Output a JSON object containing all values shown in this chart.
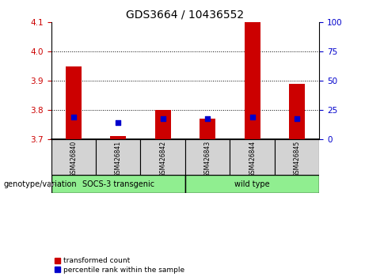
{
  "title": "GDS3664 / 10436552",
  "samples": [
    "GSM426840",
    "GSM426841",
    "GSM426842",
    "GSM426843",
    "GSM426844",
    "GSM426845"
  ],
  "red_bar_bottom": 3.7,
  "red_bar_top": [
    3.95,
    3.71,
    3.8,
    3.77,
    4.1,
    3.89
  ],
  "blue_vals": [
    3.775,
    3.755,
    3.77,
    3.77,
    3.775,
    3.77
  ],
  "ylim_left": [
    3.7,
    4.1
  ],
  "ylim_right": [
    0,
    100
  ],
  "yticks_left": [
    3.7,
    3.8,
    3.9,
    4.0,
    4.1
  ],
  "yticks_right": [
    0,
    25,
    50,
    75,
    100
  ],
  "hlines": [
    3.8,
    3.9,
    4.0
  ],
  "group1_label": "SOCS-3 transgenic",
  "group2_label": "wild type",
  "group_color": "#90EE90",
  "genotype_label": "genotype/variation",
  "legend_red": "transformed count",
  "legend_blue": "percentile rank within the sample",
  "bar_color": "#CC0000",
  "blue_color": "#0000CC",
  "left_tick_color": "#CC0000",
  "right_tick_color": "#0000CC",
  "gray_box_color": "#D3D3D3",
  "bar_width": 0.35,
  "title_fontsize": 10,
  "tick_fontsize": 7.5,
  "label_fontsize": 7,
  "legend_fontsize": 6.5
}
